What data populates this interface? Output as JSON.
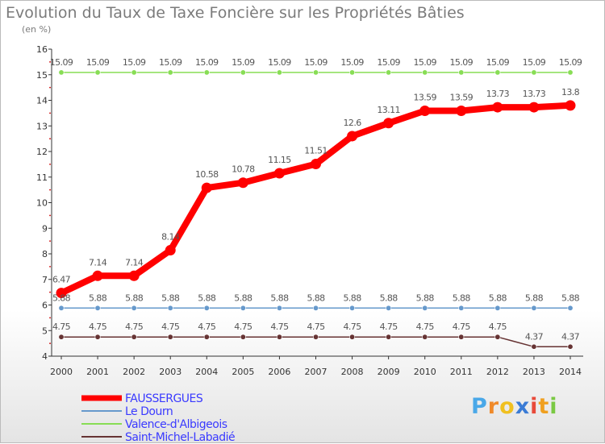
{
  "chart_data": {
    "type": "line",
    "title": "Evolution du Taux de Taxe Foncière sur les Propriétés Bâties",
    "subtitle": "(en %)",
    "x": [
      "2000",
      "2001",
      "2002",
      "2003",
      "2004",
      "2005",
      "2006",
      "2007",
      "2008",
      "2009",
      "2010",
      "2011",
      "2012",
      "2013",
      "2014"
    ],
    "ylim": [
      4,
      16
    ],
    "yticks": [
      4,
      5,
      6,
      7,
      8,
      9,
      10,
      11,
      12,
      13,
      14,
      15,
      16
    ],
    "grid": false,
    "legend_position": "bottom-left",
    "series": [
      {
        "name": "FAUSSERGUES",
        "color": "#ff0000",
        "values": [
          6.47,
          7.14,
          7.14,
          8.14,
          10.58,
          10.78,
          11.15,
          11.51,
          12.6,
          13.11,
          13.59,
          13.59,
          13.73,
          13.73,
          13.8
        ],
        "labels": [
          "6.47",
          "7.14",
          "7.14",
          "8.14",
          "10.58",
          "10.78",
          "11.15",
          "11.51",
          "12.6",
          "13.11",
          "13.59",
          "13.59",
          "13.73",
          "13.73",
          "13.8"
        ]
      },
      {
        "name": "Le Dourn",
        "color": "#6699cc",
        "values": [
          5.88,
          5.88,
          5.88,
          5.88,
          5.88,
          5.88,
          5.88,
          5.88,
          5.88,
          5.88,
          5.88,
          5.88,
          5.88,
          5.88,
          5.88
        ],
        "labels": [
          "5.88",
          "5.88",
          "5.88",
          "5.88",
          "5.88",
          "5.88",
          "5.88",
          "5.88",
          "5.88",
          "5.88",
          "5.88",
          "5.88",
          "5.88",
          "5.88",
          "5.88"
        ]
      },
      {
        "name": "Valence-d'Albigeois",
        "color": "#88dd55",
        "values": [
          15.09,
          15.09,
          15.09,
          15.09,
          15.09,
          15.09,
          15.09,
          15.09,
          15.09,
          15.09,
          15.09,
          15.09,
          15.09,
          15.09,
          15.09
        ],
        "labels": [
          "15.09",
          "15.09",
          "15.09",
          "15.09",
          "15.09",
          "15.09",
          "15.09",
          "15.09",
          "15.09",
          "15.09",
          "15.09",
          "15.09",
          "15.09",
          "15.09",
          "15.09"
        ]
      },
      {
        "name": "Saint-Michel-Labadié",
        "color": "#663333",
        "values": [
          4.75,
          4.75,
          4.75,
          4.75,
          4.75,
          4.75,
          4.75,
          4.75,
          4.75,
          4.75,
          4.75,
          4.75,
          4.75,
          4.37,
          4.37
        ],
        "labels": [
          "4.75",
          "4.75",
          "4.75",
          "4.75",
          "4.75",
          "4.75",
          "4.75",
          "4.75",
          "4.75",
          "4.75",
          "4.75",
          "4.75",
          "4.75",
          "4.37",
          "4.37"
        ]
      }
    ]
  },
  "logo": {
    "letters": [
      "P",
      "r",
      "o",
      "x",
      "i",
      "t",
      "i"
    ],
    "colors": [
      "#4aa8e8",
      "#f08a2a",
      "#f0c020",
      "#3a7bd5",
      "#e84a3a",
      "#f0a020",
      "#7ac943"
    ]
  }
}
